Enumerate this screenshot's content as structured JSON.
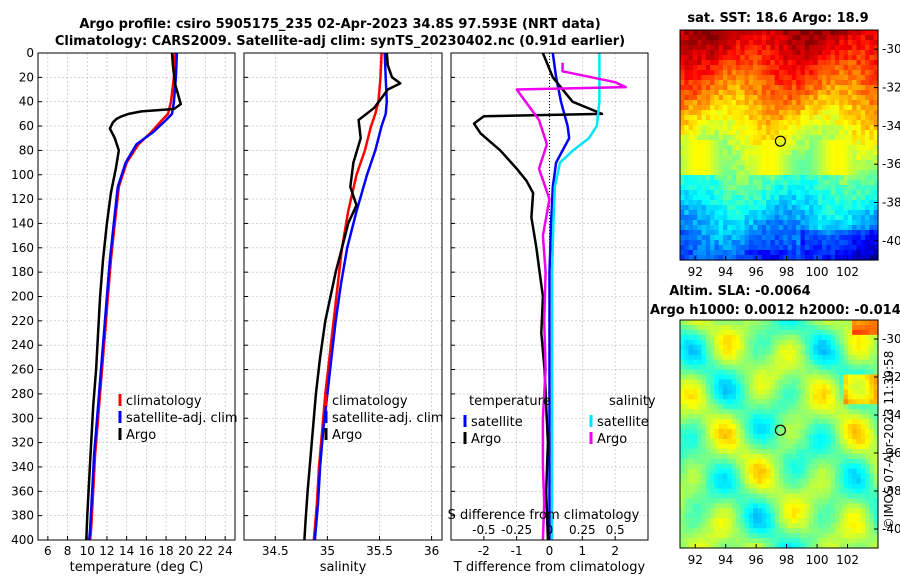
{
  "header": {
    "title_line1": "Argo profile: csiro 5905175_235 02-Apr-2023 34.8S 97.593E (NRT data)",
    "title_line2": "Climatology: CARS2009. Satellite-adj clim: synTS_20230402.nc (0.91d earlier)"
  },
  "colors": {
    "climatology": "#ff0000",
    "satellite": "#0000ff",
    "argo": "#000000",
    "sat_salinity": "#00e5ff",
    "argo_salinity": "#ee00ee"
  },
  "chart_data": [
    {
      "id": "temperature",
      "type": "line",
      "xlabel": "temperature (deg C)",
      "ylabel": "",
      "xlim": [
        5,
        25
      ],
      "ylim": [
        0,
        400
      ],
      "xticks": [
        6,
        8,
        10,
        12,
        14,
        16,
        18,
        20,
        22,
        24
      ],
      "yticks": [
        0,
        20,
        40,
        60,
        80,
        100,
        120,
        140,
        160,
        180,
        200,
        220,
        240,
        260,
        280,
        300,
        320,
        340,
        360,
        380,
        400
      ],
      "legend": [
        "climatology",
        "satellite-adj. clim",
        "Argo"
      ],
      "legend_position": "lower-right",
      "series": [
        {
          "name": "climatology",
          "color": "#ff0000",
          "x": [
            18.9,
            18.8,
            18.5,
            18.2,
            17.6,
            16.5,
            15.2,
            14.0,
            13.2,
            12.8,
            12.4,
            12.1,
            11.8,
            11.5,
            11.1,
            10.8,
            10.6,
            10.4,
            10.3
          ],
          "y": [
            0,
            20,
            40,
            50,
            55,
            65,
            75,
            90,
            110,
            140,
            170,
            200,
            230,
            260,
            300,
            330,
            360,
            390,
            400
          ]
        },
        {
          "name": "satellite-adj. clim",
          "color": "#0000ff",
          "x": [
            19.1,
            19.0,
            18.8,
            18.6,
            18.0,
            16.7,
            15.0,
            13.9,
            13.1,
            12.7,
            12.3,
            12.0,
            11.7,
            11.4,
            11.0,
            10.7,
            10.5,
            10.3,
            10.2
          ],
          "y": [
            0,
            20,
            40,
            50,
            55,
            65,
            75,
            90,
            110,
            140,
            170,
            200,
            230,
            260,
            300,
            330,
            360,
            390,
            400
          ]
        },
        {
          "name": "Argo",
          "color": "#000000",
          "x": [
            18.6,
            18.7,
            18.9,
            19.5,
            18.8,
            15.5,
            14.2,
            13.5,
            13.0,
            12.6,
            12.3,
            12.8,
            13.2,
            12.9,
            12.4,
            12.0,
            11.6,
            11.3,
            11.1,
            10.9,
            10.6,
            10.4,
            10.2,
            10.0,
            9.9
          ],
          "y": [
            0,
            10,
            25,
            42,
            46,
            48,
            50,
            52,
            54,
            57,
            62,
            70,
            80,
            95,
            115,
            140,
            170,
            200,
            230,
            260,
            290,
            320,
            350,
            380,
            400
          ]
        }
      ]
    },
    {
      "id": "salinity",
      "type": "line",
      "xlabel": "salinity",
      "ylabel": "",
      "xlim": [
        34.2,
        36.1
      ],
      "ylim": [
        0,
        400
      ],
      "xticks": [
        34.5,
        35,
        35.5,
        36
      ],
      "legend": [
        "climatology",
        "satellite-adj. clim",
        "Argo"
      ],
      "legend_position": "lower-right",
      "series": [
        {
          "name": "climatology",
          "color": "#ff0000",
          "x": [
            35.52,
            35.51,
            35.49,
            35.46,
            35.42,
            35.36,
            35.28,
            35.2,
            35.14,
            35.1,
            35.06,
            35.02,
            34.98,
            34.95,
            34.92,
            34.9,
            34.88,
            34.87
          ],
          "y": [
            0,
            20,
            40,
            50,
            60,
            80,
            100,
            130,
            160,
            190,
            220,
            250,
            280,
            310,
            340,
            370,
            390,
            400
          ]
        },
        {
          "name": "satellite-adj. clim",
          "color": "#0000ff",
          "x": [
            35.55,
            35.56,
            35.57,
            35.56,
            35.52,
            35.46,
            35.38,
            35.28,
            35.19,
            35.13,
            35.08,
            35.04,
            35.0,
            34.96,
            34.93,
            34.91,
            34.89,
            34.88
          ],
          "y": [
            0,
            20,
            40,
            50,
            60,
            80,
            100,
            130,
            160,
            190,
            220,
            250,
            280,
            310,
            340,
            370,
            390,
            400
          ]
        },
        {
          "name": "Argo",
          "color": "#000000",
          "x": [
            35.57,
            35.58,
            35.62,
            35.7,
            35.58,
            35.45,
            35.3,
            35.32,
            35.25,
            35.22,
            35.28,
            35.2,
            35.14,
            35.08,
            35.03,
            34.98,
            34.93,
            34.89,
            34.86,
            34.83,
            34.81,
            34.79,
            34.78
          ],
          "y": [
            0,
            10,
            20,
            25,
            30,
            45,
            55,
            70,
            90,
            110,
            125,
            140,
            160,
            180,
            200,
            220,
            250,
            280,
            310,
            340,
            360,
            385,
            400
          ]
        }
      ]
    },
    {
      "id": "difference",
      "type": "line",
      "xlabel": "T difference from climatology",
      "top_label": "S difference from climatology",
      "xlim": [
        -3,
        3
      ],
      "ylim": [
        0,
        400
      ],
      "xticks": [
        -2,
        -1,
        0,
        1,
        2
      ],
      "sticks": [
        -0.5,
        -0.25,
        0,
        0.25,
        0.5
      ],
      "slim": [
        -0.75,
        0.75
      ],
      "legend_temperature_title": "temperature",
      "legend_salinity_title": "salinity",
      "legend": [
        "satellite",
        "Argo",
        "satellite",
        "Argo"
      ],
      "legend_position": "lower",
      "series": [
        {
          "name": "T satellite",
          "color": "#0000ff",
          "x": [
            0.1,
            0.2,
            0.35,
            0.55,
            0.6,
            0.4,
            0.2,
            0.1,
            0.05,
            0.0,
            0.0,
            0.0,
            0.0,
            0.0,
            0.0
          ],
          "y": [
            0,
            20,
            40,
            60,
            70,
            80,
            90,
            110,
            140,
            180,
            220,
            260,
            300,
            350,
            400
          ]
        },
        {
          "name": "T Argo",
          "color": "#000000",
          "x": [
            -0.2,
            0.1,
            0.7,
            1.6,
            -2.0,
            -2.3,
            -2.1,
            -1.5,
            -1.0,
            -0.7,
            -0.5,
            -0.55,
            -0.4,
            -0.3,
            -0.2,
            -0.25,
            -0.15,
            -0.1,
            -0.05,
            -0.1,
            -0.05
          ],
          "y": [
            0,
            20,
            40,
            50,
            52,
            58,
            66,
            80,
            95,
            105,
            115,
            135,
            160,
            180,
            200,
            230,
            260,
            290,
            320,
            360,
            400
          ]
        },
        {
          "name": "S satellite",
          "color": "#00e5ff",
          "x": [
            0.38,
            0.38,
            0.38,
            0.36,
            0.3,
            0.18,
            0.08,
            0.04,
            0.03,
            0.02,
            0.02,
            0.02,
            0.02,
            0.02,
            0.02
          ],
          "y": [
            0,
            20,
            40,
            60,
            70,
            80,
            90,
            110,
            140,
            180,
            220,
            260,
            300,
            350,
            400
          ]
        },
        {
          "name": "S Argo",
          "color": "#ee00ee",
          "x": [
            0.1,
            0.1,
            0.5,
            0.58,
            -0.25,
            -0.08,
            -0.02,
            -0.08,
            0.0,
            -0.05,
            -0.03,
            -0.04,
            -0.03,
            -0.05,
            -0.05,
            -0.04,
            -0.05
          ],
          "y": [
            8,
            15,
            24,
            28,
            30,
            55,
            75,
            95,
            120,
            150,
            180,
            220,
            260,
            300,
            340,
            370,
            400
          ]
        }
      ]
    },
    {
      "id": "sst_map",
      "type": "heatmap",
      "title": "sat. SST: 18.6 Argo: 18.9",
      "xticks": [
        92,
        94,
        96,
        98,
        100,
        102
      ],
      "yticks": [
        -30,
        -32,
        -34,
        -36,
        -38,
        -40
      ],
      "xlim": [
        91,
        104
      ],
      "ylim": [
        -41,
        -29
      ],
      "argo_lon": 97.593,
      "argo_lat": -34.8
    },
    {
      "id": "sla_map",
      "type": "heatmap",
      "title_line1": "Altim. SLA: -0.0064",
      "title_line2": "Argo h1000: 0.0012 h2000: -0.014",
      "xticks": [
        92,
        94,
        96,
        98,
        100,
        102
      ],
      "yticks": [
        -30,
        -32,
        -34,
        -36,
        -38,
        -40
      ],
      "xlim": [
        91,
        104
      ],
      "ylim": [
        -41,
        -29
      ],
      "argo_lon": 97.593,
      "argo_lat": -34.8
    }
  ],
  "footer": {
    "credit": "©IMOS 07-Apr-2023 11:39:58"
  }
}
